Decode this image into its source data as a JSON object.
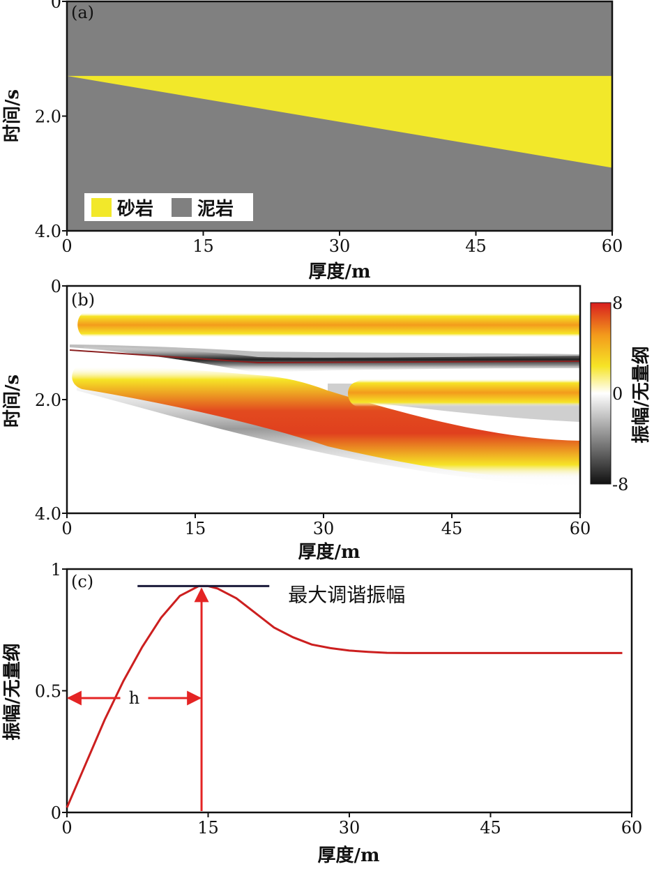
{
  "chart_data": [
    {
      "type": "area",
      "panel_label": "(a)",
      "xlabel": "厚度/m",
      "ylabel": "时间/s",
      "xlim": [
        0,
        60
      ],
      "ylim": [
        0,
        4.0
      ],
      "y_inverted": true,
      "x_ticks": [
        "0",
        "15",
        "30",
        "45",
        "60"
      ],
      "y_ticks": [
        "0",
        "2.0",
        "4.0"
      ],
      "regions": [
        {
          "name": "砂岩",
          "color": "#f2e82a",
          "top_time": [
            1.3,
            1.3
          ],
          "bottom_time": [
            1.3,
            2.9
          ],
          "x": [
            0,
            60
          ]
        }
      ],
      "legend": [
        {
          "label": "砂岩",
          "color": "#f2e82a"
        },
        {
          "label": "泥岩",
          "color": "#808080"
        }
      ],
      "background_color": "#808080",
      "legend_position": "bottom-left"
    },
    {
      "type": "heatmap",
      "panel_label": "(b)",
      "xlabel": "厚度/m",
      "ylabel": "时间/s",
      "xlim": [
        0,
        60
      ],
      "ylim": [
        0,
        4.0
      ],
      "y_inverted": true,
      "x_ticks": [
        "0",
        "15",
        "30",
        "45",
        "60"
      ],
      "y_ticks": [
        "0",
        "2.0",
        "4.0"
      ],
      "colorbar": {
        "label": "振幅/无量纲",
        "ticks": [
          "8",
          "0",
          "-8"
        ],
        "range": [
          -8,
          8
        ],
        "colors": [
          "#111111",
          "#888888",
          "#ffffff",
          "#f6e426",
          "#f39b1c",
          "#d81e1e"
        ]
      },
      "events": [
        {
          "polarity": "positive",
          "x": [
            1,
            60
          ],
          "time_top": [
            0.6,
            0.6
          ]
        },
        {
          "polarity": "negative",
          "x": [
            0,
            60
          ],
          "time_top": [
            1.15,
            1.3
          ]
        },
        {
          "polarity": "positive",
          "x": [
            1,
            60
          ],
          "time_top": [
            1.5,
            3.0
          ]
        },
        {
          "polarity": "positive",
          "x": [
            32,
            60
          ],
          "time_top": [
            1.75,
            1.75
          ]
        },
        {
          "polarity": "negative",
          "x": [
            1,
            60
          ],
          "time_top": [
            2.0,
            3.6
          ]
        }
      ]
    },
    {
      "type": "line",
      "panel_label": "(c)",
      "xlabel": "厚度/m",
      "ylabel": "振幅/无量纲",
      "xlim": [
        0,
        60
      ],
      "ylim": [
        0,
        1
      ],
      "x_ticks": [
        "0",
        "15",
        "30",
        "45",
        "60"
      ],
      "y_ticks": [
        "0",
        "0.5",
        "1"
      ],
      "series": [
        {
          "color": "#cc1f1f",
          "x": [
            0,
            2,
            4,
            6,
            8,
            10,
            12,
            14,
            15,
            16,
            18,
            20,
            22,
            24,
            26,
            28,
            30,
            32,
            34,
            36,
            40,
            45,
            50,
            55,
            59
          ],
          "values": [
            0.02,
            0.2,
            0.38,
            0.54,
            0.68,
            0.8,
            0.89,
            0.93,
            0.93,
            0.92,
            0.88,
            0.82,
            0.76,
            0.72,
            0.69,
            0.675,
            0.665,
            0.66,
            0.656,
            0.655,
            0.655,
            0.655,
            0.655,
            0.655,
            0.655
          ]
        }
      ],
      "annotations": [
        {
          "text": "最大调谐振幅",
          "x": 15,
          "y": 0.93
        },
        {
          "text": "h",
          "x_range": [
            0,
            14.3
          ],
          "y": 0.47
        }
      ],
      "tuning_thickness_x": 14.3
    }
  ]
}
